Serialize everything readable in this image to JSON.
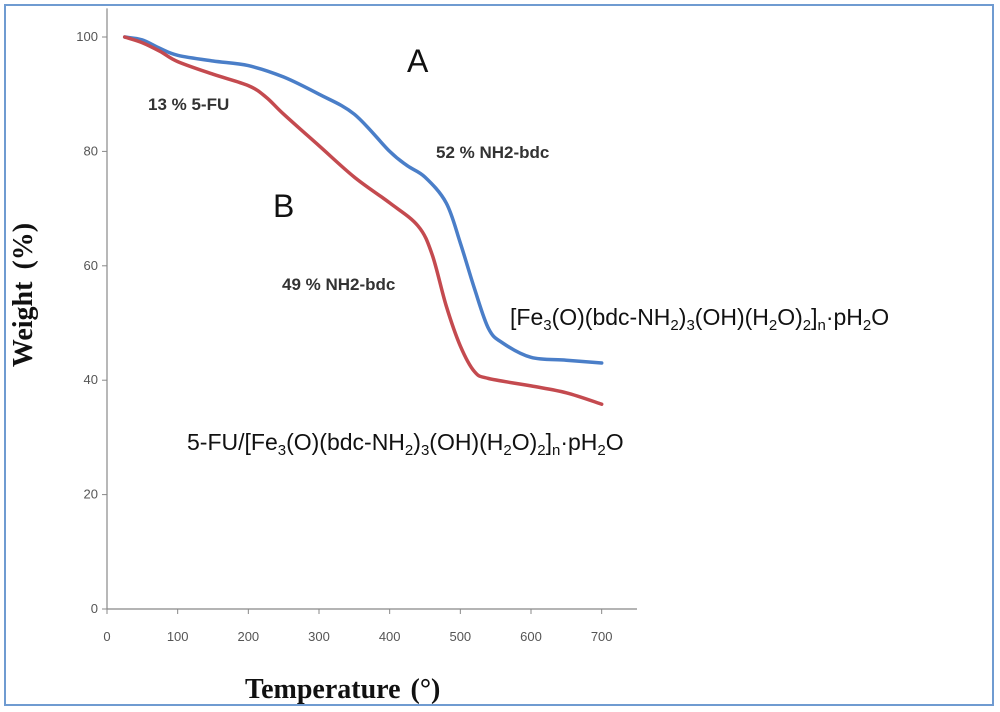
{
  "chart_data": {
    "type": "line",
    "xlabel": "Temperature",
    "xlabel_unit": "(°)",
    "ylabel": "Weight",
    "ylabel_unit": "(%)",
    "xlim": [
      0,
      750
    ],
    "ylim": [
      0,
      105
    ],
    "x_ticks": [
      0,
      100,
      200,
      300,
      400,
      500,
      600,
      700
    ],
    "y_ticks": [
      0,
      20,
      40,
      60,
      80,
      100
    ],
    "grid": false,
    "series": [
      {
        "name": "A",
        "color": "#4a7ec8",
        "points": [
          [
            25,
            100
          ],
          [
            50,
            99.5
          ],
          [
            75,
            98
          ],
          [
            100,
            96.8
          ],
          [
            150,
            95.8
          ],
          [
            200,
            95
          ],
          [
            250,
            93
          ],
          [
            300,
            90
          ],
          [
            350,
            86.5
          ],
          [
            400,
            80
          ],
          [
            425,
            77.5
          ],
          [
            450,
            75.5
          ],
          [
            480,
            71
          ],
          [
            500,
            64
          ],
          [
            520,
            56
          ],
          [
            540,
            49
          ],
          [
            560,
            46.5
          ],
          [
            600,
            44
          ],
          [
            650,
            43.5
          ],
          [
            700,
            43
          ]
        ]
      },
      {
        "name": "B",
        "color": "#c44a4f",
        "points": [
          [
            25,
            100
          ],
          [
            50,
            99
          ],
          [
            75,
            97.5
          ],
          [
            100,
            95.7
          ],
          [
            150,
            93.5
          ],
          [
            200,
            91.5
          ],
          [
            225,
            89.5
          ],
          [
            250,
            86.5
          ],
          [
            300,
            81
          ],
          [
            350,
            75.5
          ],
          [
            400,
            71
          ],
          [
            440,
            67
          ],
          [
            460,
            62
          ],
          [
            480,
            53
          ],
          [
            500,
            46
          ],
          [
            520,
            41.5
          ],
          [
            540,
            40.3
          ],
          [
            600,
            39
          ],
          [
            650,
            37.8
          ],
          [
            700,
            35.8
          ]
        ]
      }
    ],
    "annotations": {
      "letter_a": "A",
      "letter_b": "B",
      "loss_5fu": "13 % 5-FU",
      "loss_a": "52 % NH2-bdc",
      "loss_b": "49 % NH2-bdc"
    }
  },
  "formulas": {
    "a": {
      "p1": "[Fe",
      "s1": "3",
      "p2": "(O)(bdc-NH",
      "s2": "2",
      "p3": ")",
      "s3": "3",
      "p4": "(OH)(H",
      "s4": "2",
      "p5": "O)",
      "s5": "2",
      "p6": "]",
      "s6": "n",
      "p7": "·pH",
      "s7": "2",
      "p8": "O"
    },
    "b": {
      "p1": "5-FU/[Fe",
      "s1": "3",
      "p2": "(O)(bdc-NH",
      "s2": "2",
      "p3": ")",
      "s3": "3",
      "p4": "(OH)(H",
      "s4": "2",
      "p5": "O)",
      "s5": "2",
      "p6": "]",
      "s6": "n",
      "p7": "·pH",
      "s7": "2",
      "p8": "O"
    }
  }
}
